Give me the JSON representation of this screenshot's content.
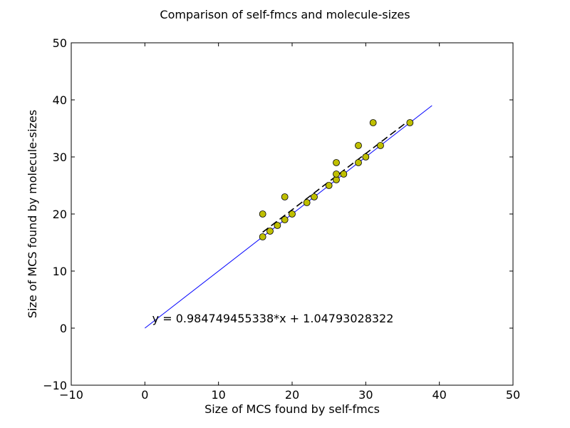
{
  "chart_data": {
    "type": "scatter",
    "title": "Comparison of self-fmcs and molecule-sizes",
    "xlabel": "Size of MCS found by self-fmcs",
    "ylabel": "Size of MCS found by molecule-sizes",
    "xlim": [
      -10,
      50
    ],
    "ylim": [
      -10,
      50
    ],
    "xticks": [
      -10,
      0,
      10,
      20,
      30,
      40,
      50
    ],
    "yticks": [
      -10,
      0,
      10,
      20,
      30,
      40,
      50
    ],
    "grid": false,
    "legend": "none",
    "points": [
      {
        "x": 16,
        "y": 16
      },
      {
        "x": 16,
        "y": 20
      },
      {
        "x": 17,
        "y": 17
      },
      {
        "x": 18,
        "y": 18
      },
      {
        "x": 19,
        "y": 19
      },
      {
        "x": 19,
        "y": 23
      },
      {
        "x": 20,
        "y": 20
      },
      {
        "x": 22,
        "y": 22
      },
      {
        "x": 23,
        "y": 23
      },
      {
        "x": 25,
        "y": 25
      },
      {
        "x": 26,
        "y": 26
      },
      {
        "x": 26,
        "y": 27
      },
      {
        "x": 26,
        "y": 29
      },
      {
        "x": 27,
        "y": 27
      },
      {
        "x": 29,
        "y": 29
      },
      {
        "x": 29,
        "y": 32
      },
      {
        "x": 30,
        "y": 30
      },
      {
        "x": 31,
        "y": 36
      },
      {
        "x": 32,
        "y": 32
      },
      {
        "x": 36,
        "y": 36
      }
    ],
    "identity_line": {
      "x": [
        0,
        39
      ],
      "y": [
        0,
        39
      ]
    },
    "fit_line": {
      "x": [
        16,
        36
      ],
      "slope": 0.984749455338,
      "intercept": 1.04793028322
    },
    "annotation": {
      "text": "y = 0.984749455338*x + 1.04793028322",
      "x": 1,
      "y": 1
    },
    "colors": {
      "points": "#bfbf00",
      "identity": "#0000ff",
      "fit": "#000000"
    }
  }
}
